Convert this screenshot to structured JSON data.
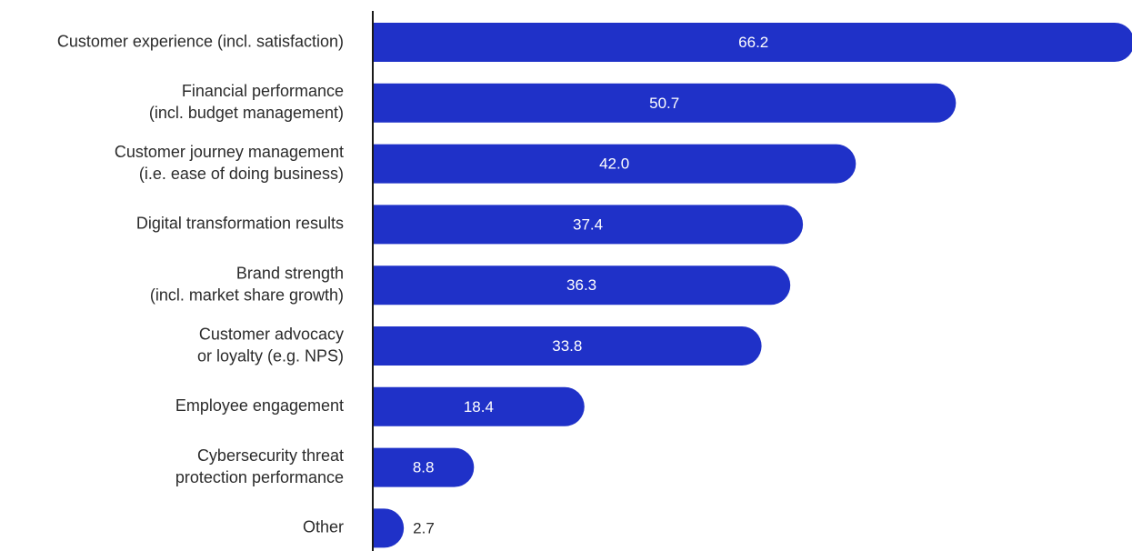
{
  "chart_data": {
    "type": "bar",
    "orientation": "horizontal",
    "categories": [
      [
        "Customer experience (incl. satisfaction)"
      ],
      [
        "Financial performance",
        "(incl. budget management)"
      ],
      [
        "Customer journey management",
        "(i.e. ease of doing business)"
      ],
      [
        "Digital transformation results"
      ],
      [
        "Brand strength",
        "(incl. market share growth)"
      ],
      [
        "Customer advocacy",
        "or loyalty (e.g. NPS)"
      ],
      [
        "Employee engagement"
      ],
      [
        "Cybersecurity threat",
        "protection performance"
      ],
      [
        "Other"
      ]
    ],
    "values": [
      66.2,
      50.7,
      42.0,
      37.4,
      36.3,
      33.8,
      18.4,
      8.8,
      2.7
    ],
    "value_labels": [
      "66.2",
      "50.7",
      "42.0",
      "37.4",
      "36.3",
      "33.8",
      "18.4",
      "8.8",
      "2.7"
    ],
    "title": "",
    "xlabel": "",
    "ylabel": "",
    "grid": false,
    "legend": "none",
    "colors": {
      "bar": "#1f31c8",
      "axis": "#1a1a1a",
      "label_inside": "#ffffff",
      "label_outside": "#2b2b2b"
    }
  }
}
